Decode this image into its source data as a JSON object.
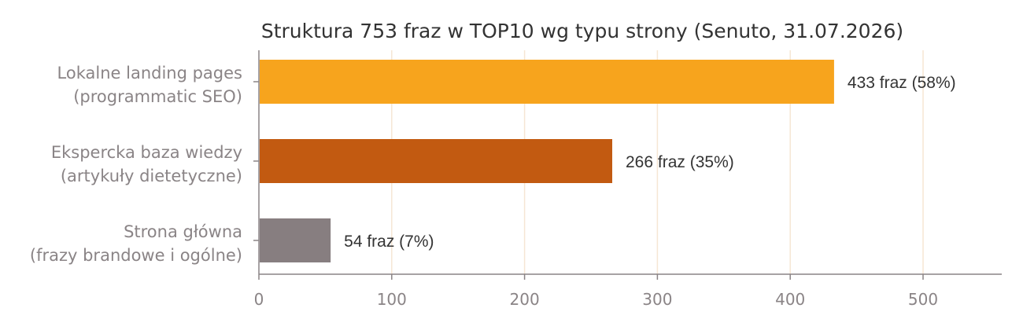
{
  "chart_data": {
    "type": "bar",
    "orientation": "horizontal",
    "title": "Struktura 753 fraz w TOP10 wg typu strony (Senuto, 31.07.2026)",
    "xlabel": "",
    "ylabel": "",
    "categories": [
      [
        "Lokalne landing pages",
        "(programmatic SEO)"
      ],
      [
        "Ekspercka baza wiedzy",
        "(artykuły dietetyczne)"
      ],
      [
        "Strona główna",
        "(frazy brandowe i ogólne)"
      ]
    ],
    "values": [
      433,
      266,
      54
    ],
    "data_labels": [
      "433 fraz (58%)",
      "266 fraz (35%)",
      "54 fraz (7%)"
    ],
    "colors": [
      "#f7a41d",
      "#c25a11",
      "#877e80"
    ],
    "xlim": [
      0,
      560
    ],
    "xticks": [
      0,
      100,
      200,
      300,
      400,
      500
    ],
    "grid": "vertical",
    "grid_color": "#f6e6d4",
    "legend": "none"
  }
}
